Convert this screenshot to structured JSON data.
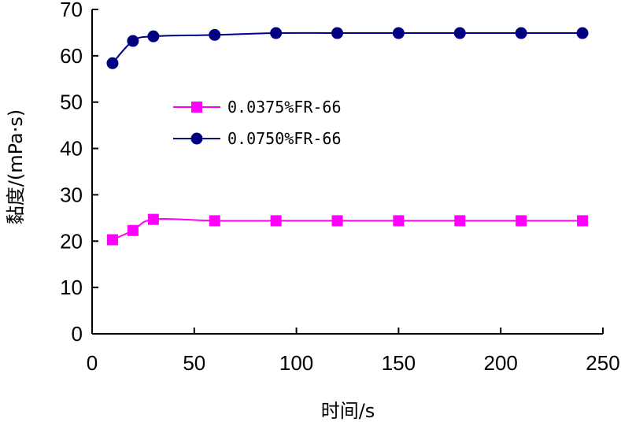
{
  "chart_data": {
    "type": "line",
    "title": "",
    "xlabel": "时间/s",
    "ylabel": "黏度/(mPa·s)",
    "xlim": [
      0,
      250
    ],
    "ylim": [
      0,
      70
    ],
    "xticks": [
      0,
      50,
      100,
      150,
      200,
      250
    ],
    "yticks": [
      0,
      10,
      20,
      30,
      40,
      50,
      60,
      70
    ],
    "grid": false,
    "legend_position": "center-left",
    "series": [
      {
        "name": "0.0375%FR-66",
        "color": "#ff00ff",
        "marker": "square",
        "x": [
          10,
          20,
          30,
          60,
          90,
          120,
          150,
          180,
          210,
          240
        ],
        "y": [
          20.3,
          22.3,
          24.7,
          24.4,
          24.4,
          24.4,
          24.4,
          24.4,
          24.4,
          24.4
        ]
      },
      {
        "name": "0.0750%FR-66",
        "color": "#000080",
        "marker": "circle",
        "x": [
          10,
          20,
          30,
          60,
          90,
          120,
          150,
          180,
          210,
          240
        ],
        "y": [
          58.4,
          63.2,
          64.2,
          64.5,
          64.9,
          64.9,
          64.9,
          64.9,
          64.9,
          64.9
        ]
      }
    ]
  }
}
